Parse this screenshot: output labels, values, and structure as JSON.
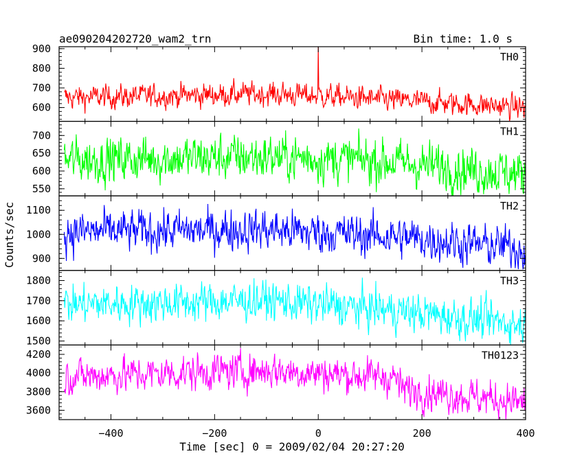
{
  "chart_data": {
    "type": "line",
    "title": "ae090204202720_wam2_trn",
    "bin_time_label": "Bin time: 1.0 s",
    "xlabel": "Time [sec] 0 = 2009/02/04 20:27:20",
    "ylabel": "Counts/sec",
    "xlim": [
      -500,
      400
    ],
    "xticks": [
      -400,
      -200,
      0,
      200,
      400
    ],
    "grid": false,
    "series": [
      {
        "name": "TH0",
        "color": "#ff0000",
        "ylim": [
          530,
          910
        ],
        "yticks": [
          600,
          700,
          800,
          900
        ],
        "trend": [
          [
            -500,
            650
          ],
          [
            -100,
            670
          ],
          [
            0,
            660
          ],
          [
            400,
            600
          ]
        ],
        "noise": 28,
        "spikes": [
          [
            0,
            910
          ]
        ]
      },
      {
        "name": "TH1",
        "color": "#00ff00",
        "ylim": [
          530,
          740
        ],
        "yticks": [
          550,
          600,
          650,
          700
        ],
        "trend": [
          [
            -500,
            630
          ],
          [
            -100,
            640
          ],
          [
            100,
            630
          ],
          [
            400,
            590
          ]
        ],
        "noise": 30,
        "spikes": []
      },
      {
        "name": "TH2",
        "color": "#0000ff",
        "ylim": [
          850,
          1160
        ],
        "yticks": [
          900,
          1000,
          1100
        ],
        "trend": [
          [
            -500,
            1010
          ],
          [
            -100,
            1020
          ],
          [
            150,
            990
          ],
          [
            400,
            940
          ]
        ],
        "noise": 40,
        "spikes": []
      },
      {
        "name": "TH3",
        "color": "#00ffff",
        "ylim": [
          1480,
          1850
        ],
        "yticks": [
          1500,
          1600,
          1700,
          1800
        ],
        "trend": [
          [
            -500,
            1680
          ],
          [
            -100,
            1700
          ],
          [
            150,
            1650
          ],
          [
            400,
            1580
          ]
        ],
        "noise": 45,
        "spikes": []
      },
      {
        "name": "TH0123",
        "color": "#ff00ff",
        "ylim": [
          3500,
          4300
        ],
        "yticks": [
          3600,
          3800,
          4000,
          4200
        ],
        "trend": [
          [
            -500,
            3960
          ],
          [
            -100,
            4030
          ],
          [
            150,
            3950
          ],
          [
            160,
            3830
          ],
          [
            400,
            3680
          ]
        ],
        "noise": 90,
        "spikes": []
      }
    ]
  }
}
